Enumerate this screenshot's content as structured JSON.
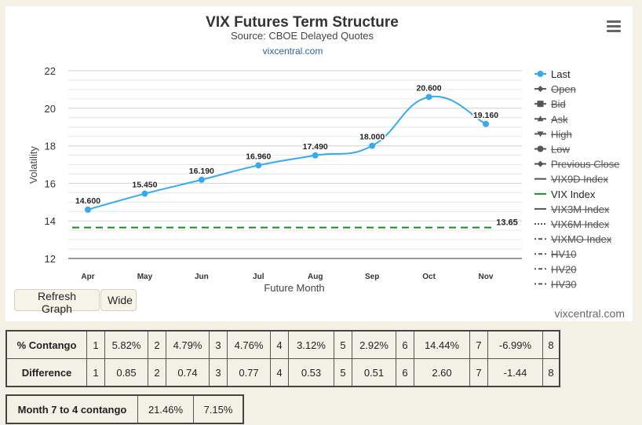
{
  "chart_data": {
    "type": "line",
    "title": "VIX Futures Term Structure",
    "subtitle": "Source: CBOE Delayed Quotes",
    "subtitle_link": "vixcentral.com",
    "xlabel": "Future Month",
    "ylabel": "Volatility",
    "categories": [
      "Apr",
      "May",
      "Jun",
      "Jul",
      "Aug",
      "Sep",
      "Oct",
      "Nov"
    ],
    "ylim": [
      12,
      22
    ],
    "yticks": [
      12,
      14,
      16,
      18,
      20,
      22
    ],
    "grid": true,
    "legend_position": "right",
    "series": [
      {
        "name": "Last",
        "values": [
          14.6,
          15.45,
          16.19,
          16.96,
          17.49,
          18.0,
          20.6,
          19.16
        ],
        "labels": [
          "14.600",
          "15.450",
          "16.190",
          "16.960",
          "17.490",
          "18.000",
          "20.600",
          "19.160"
        ],
        "color": "#35aaf0"
      },
      {
        "name": "VIX Index",
        "values": [
          13.65,
          13.65,
          13.65,
          13.65,
          13.65,
          13.65,
          13.65,
          13.65
        ],
        "end_label": "13.65",
        "color": "#1a8a1a",
        "dash": true
      }
    ],
    "legend": [
      {
        "name": "Last",
        "symbol": "circle-line",
        "visible": true
      },
      {
        "name": "Open",
        "symbol": "diamond-line",
        "visible": false
      },
      {
        "name": "Bid",
        "symbol": "square-line",
        "visible": false
      },
      {
        "name": "Ask",
        "symbol": "triangle-line",
        "visible": false
      },
      {
        "name": "High",
        "symbol": "triangle-down-line",
        "visible": false
      },
      {
        "name": "Low",
        "symbol": "circle-line",
        "visible": false
      },
      {
        "name": "Previous Close",
        "symbol": "diamond-line",
        "visible": false
      },
      {
        "name": "VIX9D Index",
        "symbol": "line",
        "visible": false
      },
      {
        "name": "VIX Index",
        "symbol": "line",
        "visible": true,
        "color": "#1a8a1a"
      },
      {
        "name": "VIX3M Index",
        "symbol": "line",
        "visible": false
      },
      {
        "name": "VIX6M Index",
        "symbol": "dotted",
        "visible": false
      },
      {
        "name": "VIXMO Index",
        "symbol": "dashdot",
        "visible": false
      },
      {
        "name": "HV10",
        "symbol": "dashdot",
        "visible": false
      },
      {
        "name": "HV20",
        "symbol": "dashdot",
        "visible": false
      },
      {
        "name": "HV30",
        "symbol": "dashdot",
        "visible": false
      }
    ]
  },
  "controls": {
    "refresh_label": "Refresh Graph",
    "wide_label": "Wide",
    "menu_icon": "hamburger-menu-icon"
  },
  "credit": "vixcentral.com",
  "contango_table": {
    "rows": [
      {
        "label": "% Contango",
        "cells": [
          [
            "1",
            "5.82%"
          ],
          [
            "2",
            "4.79%"
          ],
          [
            "3",
            "4.76%"
          ],
          [
            "4",
            "3.12%"
          ],
          [
            "5",
            "2.92%"
          ],
          [
            "6",
            "14.44%"
          ],
          [
            "7",
            "-6.99%"
          ]
        ],
        "last": "8"
      },
      {
        "label": "Difference",
        "cells": [
          [
            "1",
            "0.85"
          ],
          [
            "2",
            "0.74"
          ],
          [
            "3",
            "0.77"
          ],
          [
            "4",
            "0.53"
          ],
          [
            "5",
            "0.51"
          ],
          [
            "6",
            "2.60"
          ],
          [
            "7",
            "-1.44"
          ]
        ],
        "last": "8"
      }
    ]
  },
  "month74": {
    "label": "Month 7 to 4 contango",
    "percent": "21.46%",
    "value": "7.15%"
  }
}
